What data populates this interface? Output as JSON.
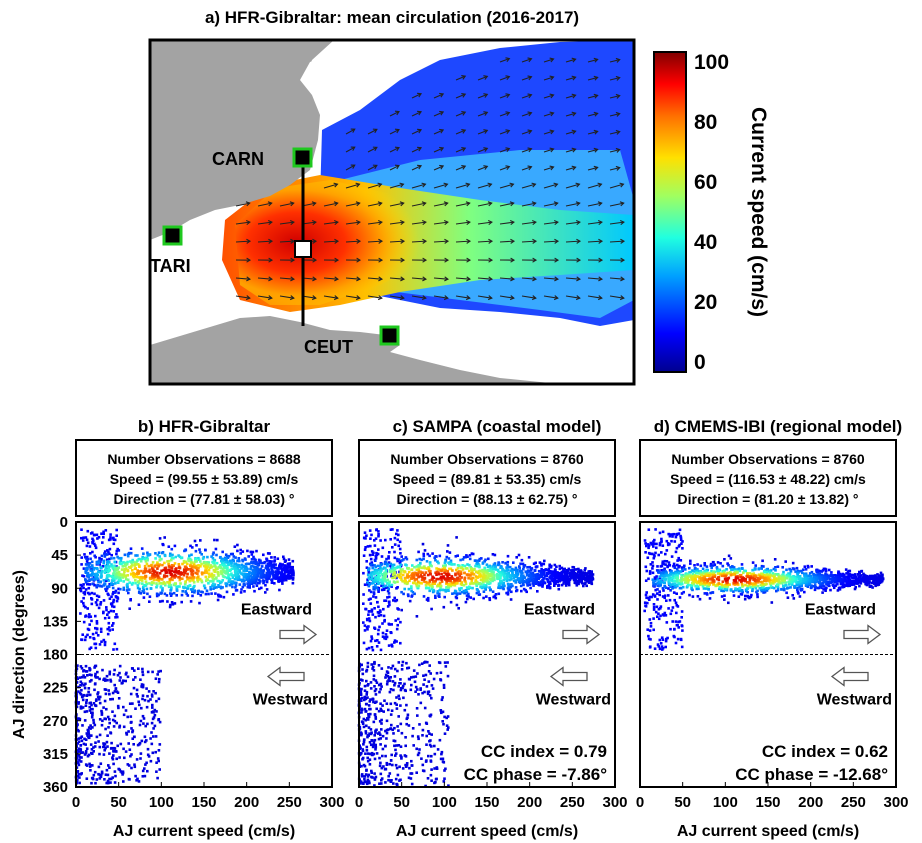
{
  "panel_a": {
    "title": "a) HFR-Gibraltar: mean circulation (2016-2017)",
    "stations": {
      "carn": "CARN",
      "tari": "TARI",
      "ceut": "CEUT"
    },
    "colorbar": {
      "label": "Current speed (cm/s)",
      "ticks": [
        "100",
        "80",
        "60",
        "40",
        "20",
        "0"
      ],
      "min": 0,
      "max": 100,
      "colors": [
        "#00008f",
        "#0000ff",
        "#00a0ff",
        "#20ffe0",
        "#a0ff60",
        "#ffe000",
        "#ff7000",
        "#ff0000",
        "#800000"
      ]
    },
    "land_color": "#a3a3a3"
  },
  "chart_data": [
    {
      "type": "scatter",
      "title": "b) HFR-Gibraltar",
      "stats": {
        "observations": "Number Observations = 8688",
        "speed": "Speed = (99.55 ± 53.89) cm/s",
        "direction": "Direction = (77.81 ± 58.03) °"
      },
      "xlabel": "AJ current speed (cm/s)",
      "ylabel": "AJ direction (degrees)",
      "xlim": [
        0,
        300
      ],
      "ylim": [
        0,
        360
      ],
      "yinverted": true,
      "xticks": [
        "0",
        "50",
        "100",
        "150",
        "200",
        "250",
        "300"
      ],
      "yticks": [
        "0",
        "45",
        "90",
        "135",
        "180",
        "225",
        "270",
        "315",
        "360"
      ],
      "reference_line": 180,
      "labels": {
        "east": "Eastward",
        "west": "Westward"
      },
      "main_cluster": {
        "center": [
          110,
          68
        ],
        "speed_range": [
          10,
          255
        ],
        "spread_deg": 20
      },
      "westward_cluster": {
        "speed_range": [
          0,
          100
        ],
        "direction_range": [
          195,
          355
        ]
      },
      "cc": null
    },
    {
      "type": "scatter",
      "title": "c) SAMPA (coastal model)",
      "stats": {
        "observations": "Number Observations = 8760",
        "speed": "Speed = (89.81 ± 53.35) cm/s",
        "direction": "Direction = (88.13 ± 62.75) °"
      },
      "xlabel": "AJ current speed (cm/s)",
      "xlim": [
        0,
        300
      ],
      "ylim": [
        0,
        360
      ],
      "yinverted": true,
      "xticks": [
        "0",
        "50",
        "100",
        "150",
        "200",
        "250",
        "300"
      ],
      "reference_line": 180,
      "labels": {
        "east": "Eastward",
        "west": "Westward"
      },
      "main_cluster": {
        "center": [
          95,
          74
        ],
        "speed_range": [
          10,
          275
        ],
        "spread_deg": 17
      },
      "westward_cluster": {
        "speed_range": [
          0,
          105
        ],
        "direction_range": [
          190,
          360
        ]
      },
      "cc": {
        "index": "CC index = 0.79",
        "phase": "CC phase = -7.86°"
      }
    },
    {
      "type": "scatter",
      "title": "d) CMEMS-IBI (regional model)",
      "stats": {
        "observations": "Number Observations = 8760",
        "speed": "Speed = (116.53 ± 48.22) cm/s",
        "direction": "Direction = (81.20 ± 13.82) °"
      },
      "xlabel": "AJ current speed (cm/s)",
      "xlim": [
        0,
        300
      ],
      "ylim": [
        0,
        360
      ],
      "yinverted": true,
      "xticks": [
        "0",
        "50",
        "100",
        "150",
        "200",
        "250",
        "300"
      ],
      "reference_line": 180,
      "labels": {
        "east": "Eastward",
        "west": "Westward"
      },
      "main_cluster": {
        "center": [
          110,
          78
        ],
        "speed_range": [
          15,
          285
        ],
        "spread_deg": 12
      },
      "westward_cluster": null,
      "cc": {
        "index": "CC index = 0.62",
        "phase": "CC phase = -12.68°"
      }
    }
  ]
}
